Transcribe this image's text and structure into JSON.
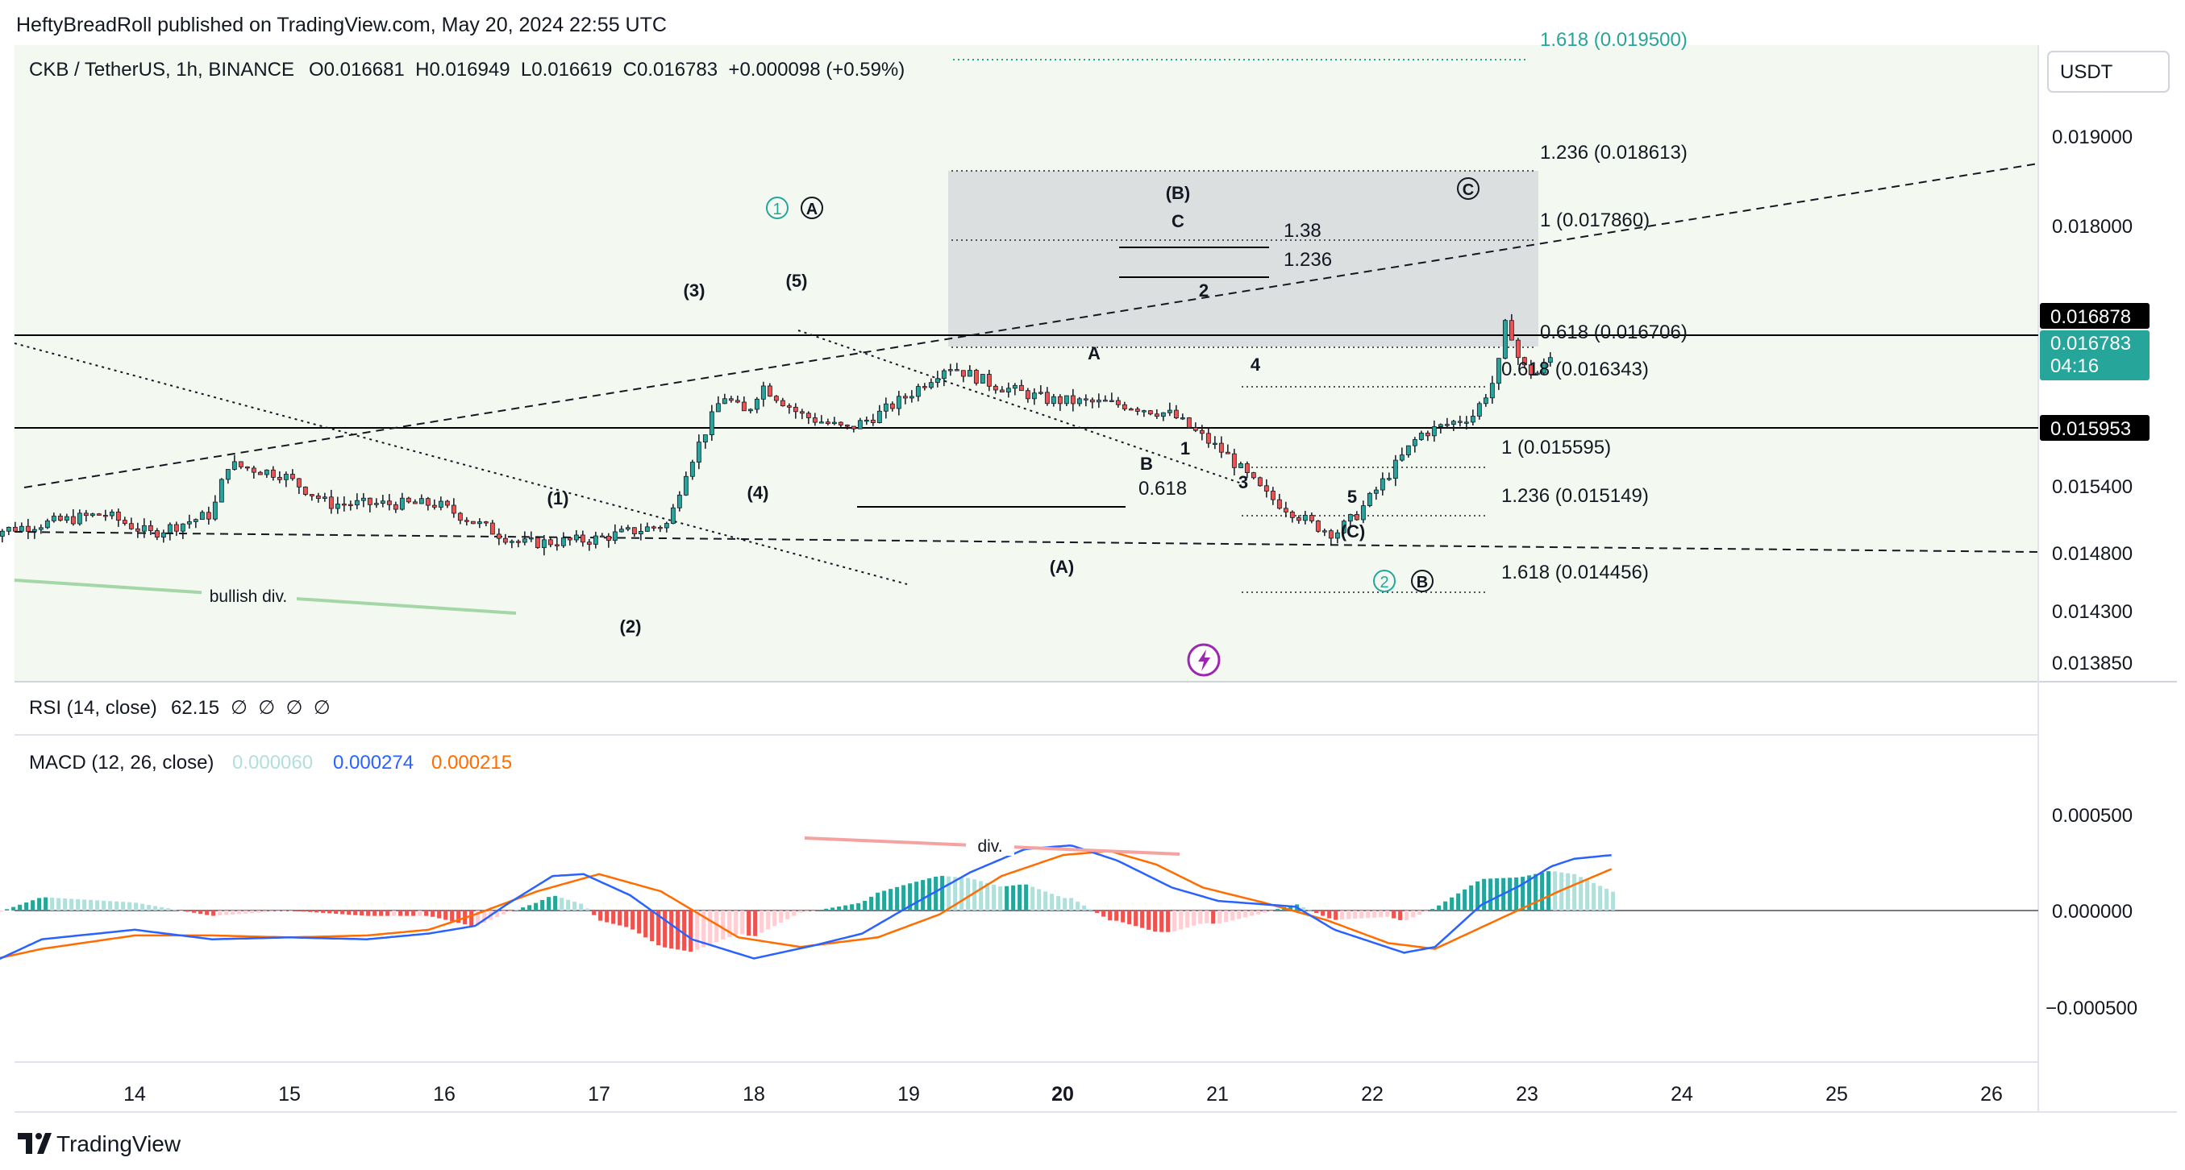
{
  "header": {
    "published_line": "HeftyBreadRoll published on TradingView.com, May 20, 2024 22:55 UTC",
    "symbol_line": "CKB / TetherUS, 1h, BINANCE",
    "ohlc": "O0.016681  H0.016949  L0.016619  C0.016783  +0.000098 (+0.59%)",
    "currency": "USDT"
  },
  "price_axis": {
    "labels": [
      "0.019000",
      "0.018000",
      "0.015400",
      "0.014800",
      "0.014300",
      "0.013850"
    ],
    "tags": [
      {
        "value": "0.016878",
        "bg": "#000000",
        "fg": "#ffffff"
      },
      {
        "value": "0.016783",
        "sub": "04:16",
        "bg": "#26a69a",
        "fg": "#ffffff"
      },
      {
        "value": "0.015953",
        "bg": "#000000",
        "fg": "#ffffff"
      }
    ]
  },
  "time_axis": {
    "labels": [
      "14",
      "15",
      "16",
      "17",
      "18",
      "19",
      "20",
      "21",
      "22",
      "23",
      "24",
      "25",
      "26"
    ],
    "bold": "20"
  },
  "fib_labels": [
    "1.618 (0.019500)",
    "1.236 (0.018613)",
    "1 (0.017860)",
    "1.38",
    "1.236",
    "0.618 (0.016706)",
    "0.618 (0.016343)",
    "1 (0.015595)",
    "1.236 (0.015149)",
    "1.618 (0.014456)",
    "0.618"
  ],
  "wave_labels": {
    "w1": "(1)",
    "w2": "(2)",
    "w3": "(3)",
    "w4": "(4)",
    "w5": "(5)",
    "wA": "(A)",
    "wB": "(B)",
    "wC": "(C)",
    "A": "A",
    "B": "B",
    "C": "C",
    "n1": "1",
    "n2": "2",
    "n3": "3",
    "n4": "4",
    "n5": "5",
    "c1": "1",
    "c2": "2",
    "cA": "A",
    "cB": "B",
    "cC": "C"
  },
  "annotations": {
    "bullish_div": "bullish div.",
    "div": "div."
  },
  "rsi": {
    "title": "RSI (14, close)",
    "value": "62.15",
    "nulls": "∅  ∅  ∅  ∅"
  },
  "macd": {
    "title": "MACD (12, 26, close)",
    "hist": "0.000060",
    "macd": "0.000274",
    "signal": "0.000215",
    "axis_labels": [
      "0.000500",
      "0.000000",
      "−0.000500"
    ]
  },
  "footer": {
    "brand": "TradingView"
  },
  "colors": {
    "pane_bg": "#f3f9f1",
    "up": "#26a69a",
    "down": "#ef5350",
    "fib": "#26a69a",
    "macd_line": "#2962ff",
    "signal_line": "#ff6d00",
    "hist_light": "#b2dfdb"
  },
  "chart_data": [
    {
      "type": "candlestick",
      "title": "CKB / TetherUS, 1h, BINANCE",
      "x_labels": [
        "14",
        "15",
        "16",
        "17",
        "18",
        "19",
        "20",
        "21",
        "22",
        "23",
        "24",
        "25",
        "26"
      ],
      "ylim": [
        0.01385,
        0.0195
      ],
      "path": [
        [
          0.0,
          0.015
        ],
        [
          0.8,
          0.0152
        ],
        [
          1.1,
          0.015
        ],
        [
          1.5,
          0.0152
        ],
        [
          1.6,
          0.0157
        ],
        [
          1.95,
          0.0156
        ],
        [
          2.25,
          0.0153
        ],
        [
          2.95,
          0.0153
        ],
        [
          3.35,
          0.015
        ],
        [
          3.5,
          0.0149
        ],
        [
          3.95,
          0.01494
        ],
        [
          4.45,
          0.0151
        ],
        [
          4.55,
          0.0156
        ],
        [
          4.8,
          0.0164
        ],
        [
          4.95,
          0.0162
        ],
        [
          5.05,
          0.0165
        ],
        [
          5.3,
          0.0162
        ],
        [
          5.6,
          0.01605
        ],
        [
          5.8,
          0.0162
        ],
        [
          6.0,
          0.0164
        ],
        [
          6.25,
          0.0167
        ],
        [
          6.55,
          0.0165
        ],
        [
          6.9,
          0.01635
        ],
        [
          7.4,
          0.0163
        ],
        [
          7.7,
          0.0162
        ],
        [
          8.05,
          0.0158
        ],
        [
          8.3,
          0.0154
        ],
        [
          8.6,
          0.0151
        ],
        [
          8.75,
          0.015
        ],
        [
          8.9,
          0.0152
        ],
        [
          9.1,
          0.0156
        ],
        [
          9.3,
          0.016
        ],
        [
          9.65,
          0.0162
        ],
        [
          9.8,
          0.0166
        ],
        [
          9.85,
          0.0171
        ],
        [
          9.9,
          0.017
        ],
        [
          9.95,
          0.0167
        ],
        [
          10.05,
          0.0166
        ],
        [
          10.15,
          0.01678
        ]
      ]
    },
    {
      "type": "line",
      "title": "MACD (12, 26, close)",
      "ylim": [
        -0.0006,
        0.0006
      ],
      "series": [
        {
          "name": "MACD",
          "points": [
            [
              0,
              -0.0003
            ],
            [
              0.4,
              -0.00015
            ],
            [
              1,
              -0.0001
            ],
            [
              1.5,
              -0.00015
            ],
            [
              2,
              -0.00014
            ],
            [
              2.5,
              -0.00015
            ],
            [
              2.9,
              -0.00012
            ],
            [
              3.2,
              -8e-05
            ],
            [
              3.4,
              3e-05
            ],
            [
              3.7,
              0.00018
            ],
            [
              3.9,
              0.00019
            ],
            [
              4.2,
              8e-05
            ],
            [
              4.6,
              -0.00015
            ],
            [
              5.0,
              -0.00025
            ],
            [
              5.4,
              -0.00018
            ],
            [
              5.7,
              -0.00012
            ],
            [
              6.0,
              2e-05
            ],
            [
              6.4,
              0.0002
            ],
            [
              6.75,
              0.00032
            ],
            [
              7.05,
              0.00034
            ],
            [
              7.35,
              0.00026
            ],
            [
              7.7,
              0.00012
            ],
            [
              8.0,
              5e-05
            ],
            [
              8.5,
              2e-05
            ],
            [
              8.75,
              -0.0001
            ],
            [
              9.2,
              -0.00022
            ],
            [
              9.4,
              -0.00019
            ],
            [
              9.7,
              3e-05
            ],
            [
              9.95,
              0.00013
            ],
            [
              10.15,
              0.00023
            ],
            [
              10.3,
              0.00027
            ],
            [
              10.55,
              0.00029
            ]
          ]
        },
        {
          "name": "Signal",
          "points": [
            [
              0,
              -0.00027
            ],
            [
              0.4,
              -0.0002
            ],
            [
              1,
              -0.00013
            ],
            [
              1.5,
              -0.00013
            ],
            [
              2,
              -0.00014
            ],
            [
              2.5,
              -0.00013
            ],
            [
              2.9,
              -0.0001
            ],
            [
              3.2,
              -2e-05
            ],
            [
              3.6,
              0.0001
            ],
            [
              4.0,
              0.00019
            ],
            [
              4.4,
              0.0001
            ],
            [
              4.9,
              -0.00014
            ],
            [
              5.3,
              -0.00019
            ],
            [
              5.8,
              -0.00014
            ],
            [
              6.2,
              -2e-05
            ],
            [
              6.6,
              0.00018
            ],
            [
              7.0,
              0.00029
            ],
            [
              7.3,
              0.00031
            ],
            [
              7.6,
              0.00024
            ],
            [
              7.9,
              0.00012
            ],
            [
              8.3,
              4e-05
            ],
            [
              8.7,
              -5e-05
            ],
            [
              9.1,
              -0.00017
            ],
            [
              9.4,
              -0.0002
            ],
            [
              9.8,
              -5e-05
            ],
            [
              10.2,
              0.0001
            ],
            [
              10.55,
              0.00022
            ]
          ]
        }
      ]
    }
  ]
}
